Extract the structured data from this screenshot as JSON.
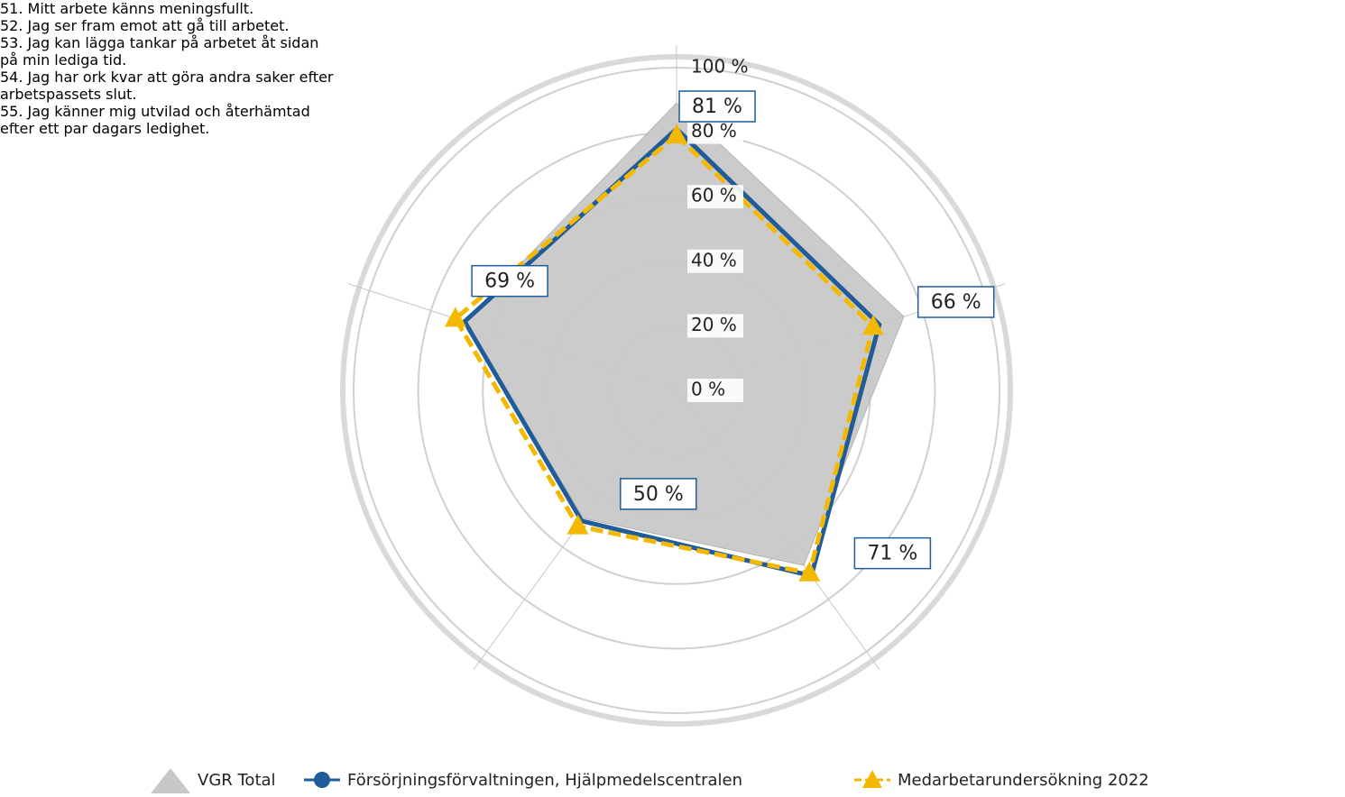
{
  "chart_data": {
    "type": "radar",
    "categories": [
      "51. Mitt arbete känns meningsfullt.",
      "52. Jag ser fram emot att gå till arbetet.",
      "53. Jag kan lägga tankar på arbetet åt sidan på min lediga tid.",
      "54. Jag har ork kvar att göra andra saker efter arbetspassets slut.",
      "55. Jag känner mig utvilad och återhämtad efter ett par dagars ledighet."
    ],
    "series": [
      {
        "name": "VGR Total",
        "color": "#c8c8c8",
        "values": [
          89,
          74,
          67,
          49,
          69
        ]
      },
      {
        "name": "Försörjningsförvaltningen, Hjälpmedelscentralen",
        "color": "#1f5c99",
        "values": [
          81,
          66,
          71,
          50,
          69
        ],
        "value_labels": [
          "81 %",
          "66 %",
          "71 %",
          "50 %",
          "69 %"
        ]
      },
      {
        "name": "Medarbetarundersökning 2022",
        "color": "#f5b800",
        "values": [
          79,
          64,
          70,
          52,
          72
        ]
      }
    ],
    "ylim": [
      0,
      100
    ],
    "yticks": [
      {
        "value": 0,
        "label": "0 %"
      },
      {
        "value": 20,
        "label": "20 %"
      },
      {
        "value": 40,
        "label": "40 %"
      },
      {
        "value": 60,
        "label": "60 %"
      },
      {
        "value": 80,
        "label": "80 %"
      },
      {
        "value": 100,
        "label": "100 %"
      }
    ],
    "grid": true,
    "legend": "bottom"
  }
}
